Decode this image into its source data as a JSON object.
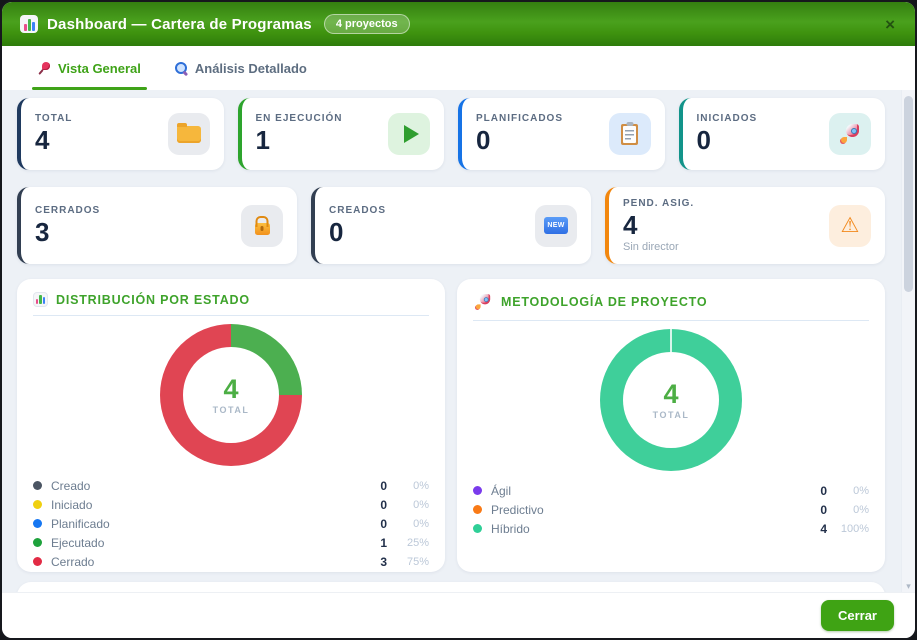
{
  "header": {
    "icon": "bar-chart-icon",
    "title": "Dashboard — Cartera de Programas",
    "badge": "4 proyectos"
  },
  "glyphs": {
    "close": "×",
    "new": "NEW",
    "warning": "⚠",
    "scroll_down": "▾"
  },
  "tabs": [
    {
      "icon": "pushpin-icon",
      "label": "Vista General",
      "active": true
    },
    {
      "icon": "magnifier-icon",
      "label": "Análisis Detallado",
      "active": false
    }
  ],
  "cards": [
    {
      "label": "TOTAL",
      "value": "4",
      "icon": "folder-icon",
      "accent": "#1f3a5f",
      "icon_bg": "#e9ebef"
    },
    {
      "label": "EN EJECUCIÓN",
      "value": "1",
      "icon": "play-icon",
      "accent": "#2da42d",
      "icon_bg": "#def3df"
    },
    {
      "label": "PLANIFICADOS",
      "value": "0",
      "icon": "clipboard-icon",
      "accent": "#1673e6",
      "icon_bg": "#dceafb"
    },
    {
      "label": "INICIADOS",
      "value": "0",
      "icon": "rocket-icon",
      "accent": "#12948a",
      "icon_bg": "#dcf1f0"
    },
    {
      "label": "CERRADOS",
      "value": "3",
      "icon": "lock-icon",
      "accent": "#323f52",
      "icon_bg": "#e9ebef"
    },
    {
      "label": "CREADOS",
      "value": "0",
      "icon": "new-badge-icon",
      "accent": "#323f52",
      "icon_bg": "#e9ebef"
    },
    {
      "label": "PEND. ASIG.",
      "value": "4",
      "sublabel": "Sin director",
      "icon": "warning-icon",
      "accent": "#f2870f",
      "icon_bg": "#fdeede"
    }
  ],
  "panels": [
    {
      "icon": "bar-chart-icon",
      "title": "DISTRIBUCIÓN POR ESTADO",
      "center_value": "4",
      "center_label": "TOTAL",
      "segments": [
        {
          "label": "Ejecutado",
          "color": "#4caf50",
          "pct": 25
        },
        {
          "label": "Cerrado",
          "color": "#e04553",
          "pct": 75
        }
      ],
      "legend": [
        {
          "label": "Creado",
          "color": "#4b5563",
          "value": "0",
          "pct": "0%"
        },
        {
          "label": "Iniciado",
          "color": "#f0d010",
          "value": "0",
          "pct": "0%"
        },
        {
          "label": "Planificado",
          "color": "#1677f2",
          "value": "0",
          "pct": "0%"
        },
        {
          "label": "Ejecutado",
          "color": "#1ea23c",
          "value": "1",
          "pct": "25%"
        },
        {
          "label": "Cerrado",
          "color": "#e22b45",
          "value": "3",
          "pct": "75%"
        }
      ]
    },
    {
      "icon": "rocket-icon",
      "title": "METODOLOGÍA DE PROYECTO",
      "center_value": "4",
      "center_label": "TOTAL",
      "segments": [
        {
          "label": "Híbrido",
          "color": "#3fcf9a",
          "pct": 100
        }
      ],
      "legend": [
        {
          "label": "Ágil",
          "color": "#7a3bec",
          "value": "0",
          "pct": "0%"
        },
        {
          "label": "Predictivo",
          "color": "#f97a16",
          "value": "0",
          "pct": "0%"
        },
        {
          "label": "Híbrido",
          "color": "#2fcf97",
          "value": "4",
          "pct": "100%"
        }
      ]
    }
  ],
  "footer": {
    "close_label": "Cerrar"
  },
  "chart_data": [
    {
      "type": "pie",
      "title": "Distribución por Estado",
      "labels": [
        "Creado",
        "Iniciado",
        "Planificado",
        "Ejecutado",
        "Cerrado"
      ],
      "values": [
        0,
        0,
        0,
        1,
        3
      ],
      "percents": [
        "0%",
        "0%",
        "0%",
        "25%",
        "75%"
      ],
      "total": 4,
      "center_text": "4 TOTAL",
      "legend_position": "bottom"
    },
    {
      "type": "pie",
      "title": "Metodología de Proyecto",
      "labels": [
        "Ágil",
        "Predictivo",
        "Híbrido"
      ],
      "values": [
        0,
        0,
        4
      ],
      "percents": [
        "0%",
        "0%",
        "100%"
      ],
      "total": 4,
      "center_text": "4 TOTAL",
      "legend_position": "bottom"
    }
  ]
}
